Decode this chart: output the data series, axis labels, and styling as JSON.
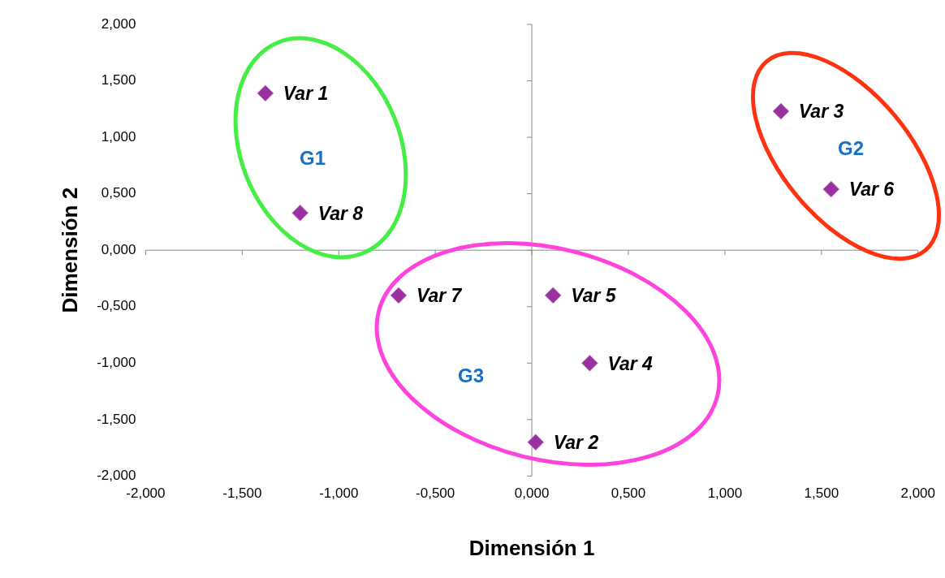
{
  "chart_data": {
    "type": "scatter",
    "xlabel": "Dimensión 1",
    "ylabel": "Dimensión 2",
    "x": [
      -1.38,
      0.02,
      1.29,
      0.3,
      0.11,
      1.55,
      -0.69,
      -1.2
    ],
    "values": [
      1.39,
      -1.7,
      1.23,
      -1.0,
      -0.4,
      0.54,
      -0.4,
      0.33
    ],
    "color": "#9b30a0",
    "marker": "diamond",
    "xlim": [
      -2,
      2
    ],
    "ylim": [
      -2,
      2
    ],
    "xticks": [
      {
        "value": -2,
        "label": "-2,000"
      },
      {
        "value": -1.5,
        "label": "-1,500"
      },
      {
        "value": -1,
        "label": "-1,000"
      },
      {
        "value": -0.5,
        "label": "-0,500"
      },
      {
        "value": 0,
        "label": "0,000"
      },
      {
        "value": 0.5,
        "label": "0,500"
      },
      {
        "value": 1,
        "label": "1,000"
      },
      {
        "value": 1.5,
        "label": "1,500"
      },
      {
        "value": 2,
        "label": "2,000"
      }
    ],
    "yticks": [
      {
        "value": -2,
        "label": "-2,000"
      },
      {
        "value": -1.5,
        "label": "-1,500"
      },
      {
        "value": -1,
        "label": "-1,000"
      },
      {
        "value": -0.5,
        "label": "-0,500"
      },
      {
        "value": 0,
        "label": "0,000"
      },
      {
        "value": 0.5,
        "label": "0,500"
      },
      {
        "value": 1,
        "label": "1,000"
      },
      {
        "value": 1.5,
        "label": "1,500"
      },
      {
        "value": 2,
        "label": "2,000"
      }
    ],
    "annotations": [
      {
        "text": "Var 1",
        "x": -1.38,
        "y": 1.39
      },
      {
        "text": "Var 2",
        "x": 0.02,
        "y": -1.7
      },
      {
        "text": "Var 3",
        "x": 1.29,
        "y": 1.23
      },
      {
        "text": "Var 4",
        "x": 0.3,
        "y": -1.0
      },
      {
        "text": "Var 5",
        "x": 0.11,
        "y": -0.4
      },
      {
        "text": "Var 6",
        "x": 1.55,
        "y": 0.54
      },
      {
        "text": "Var 7",
        "x": -0.69,
        "y": -0.4
      },
      {
        "text": "Var 8",
        "x": -1.2,
        "y": 0.33
      },
      "G1",
      "G2",
      "G3"
    ]
  }
}
